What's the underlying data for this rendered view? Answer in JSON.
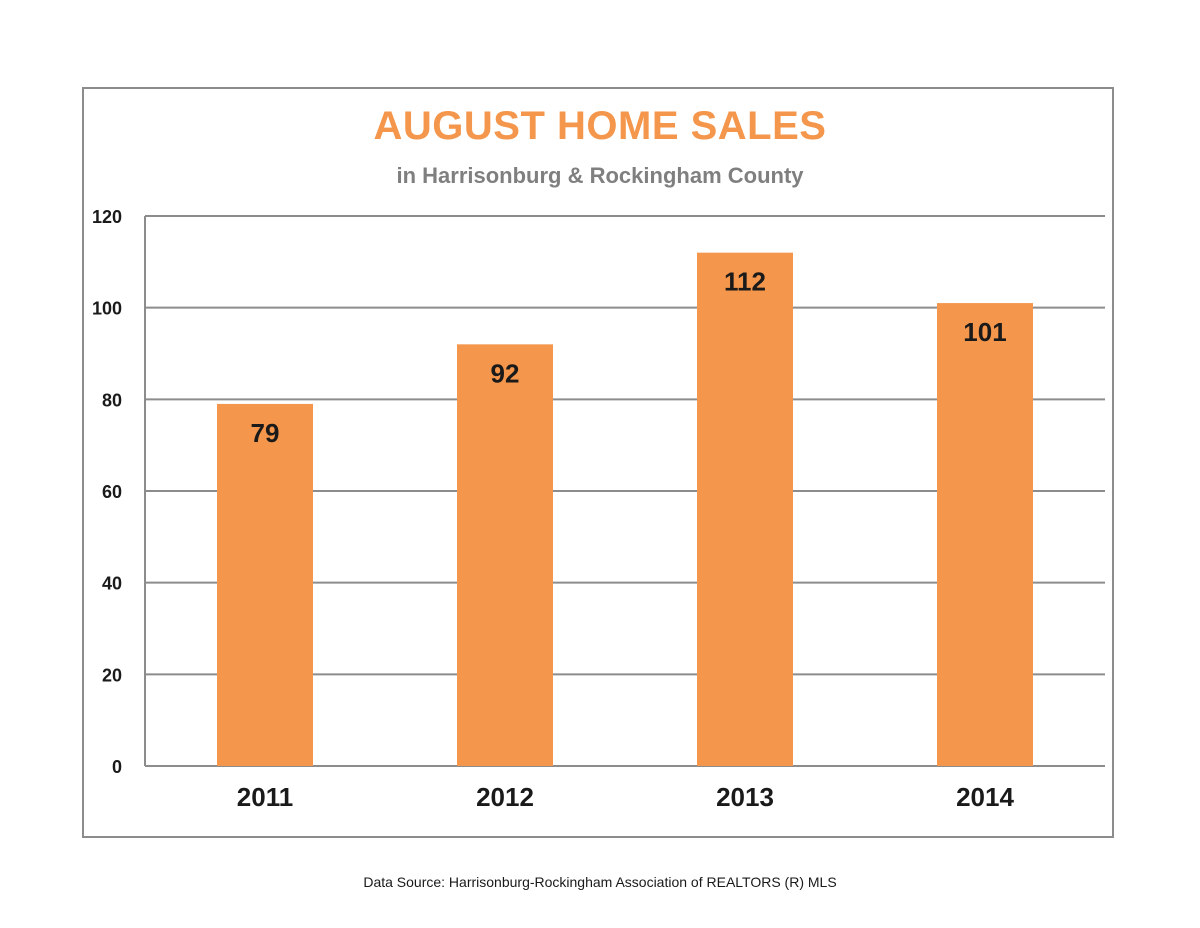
{
  "chart_data": {
    "type": "bar",
    "title": "AUGUST HOME SALES",
    "subtitle": "in Harrisonburg & Rockingham County",
    "xlabel": "",
    "ylabel": "",
    "categories": [
      "2011",
      "2012",
      "2013",
      "2014"
    ],
    "values": [
      79,
      92,
      112,
      101
    ],
    "data_labels": [
      "79",
      "92",
      "112",
      "101"
    ],
    "ylim": [
      0,
      120
    ],
    "yticks": [
      0,
      20,
      40,
      60,
      80,
      100,
      120
    ],
    "grid": true,
    "legend": "none",
    "bar_color": "#f4964b",
    "title_color": "#f4964b",
    "subtitle_color": "#7f7f7f"
  },
  "footer": {
    "source": "Data Source: Harrisonburg-Rockingham Association of REALTORS (R) MLS"
  }
}
